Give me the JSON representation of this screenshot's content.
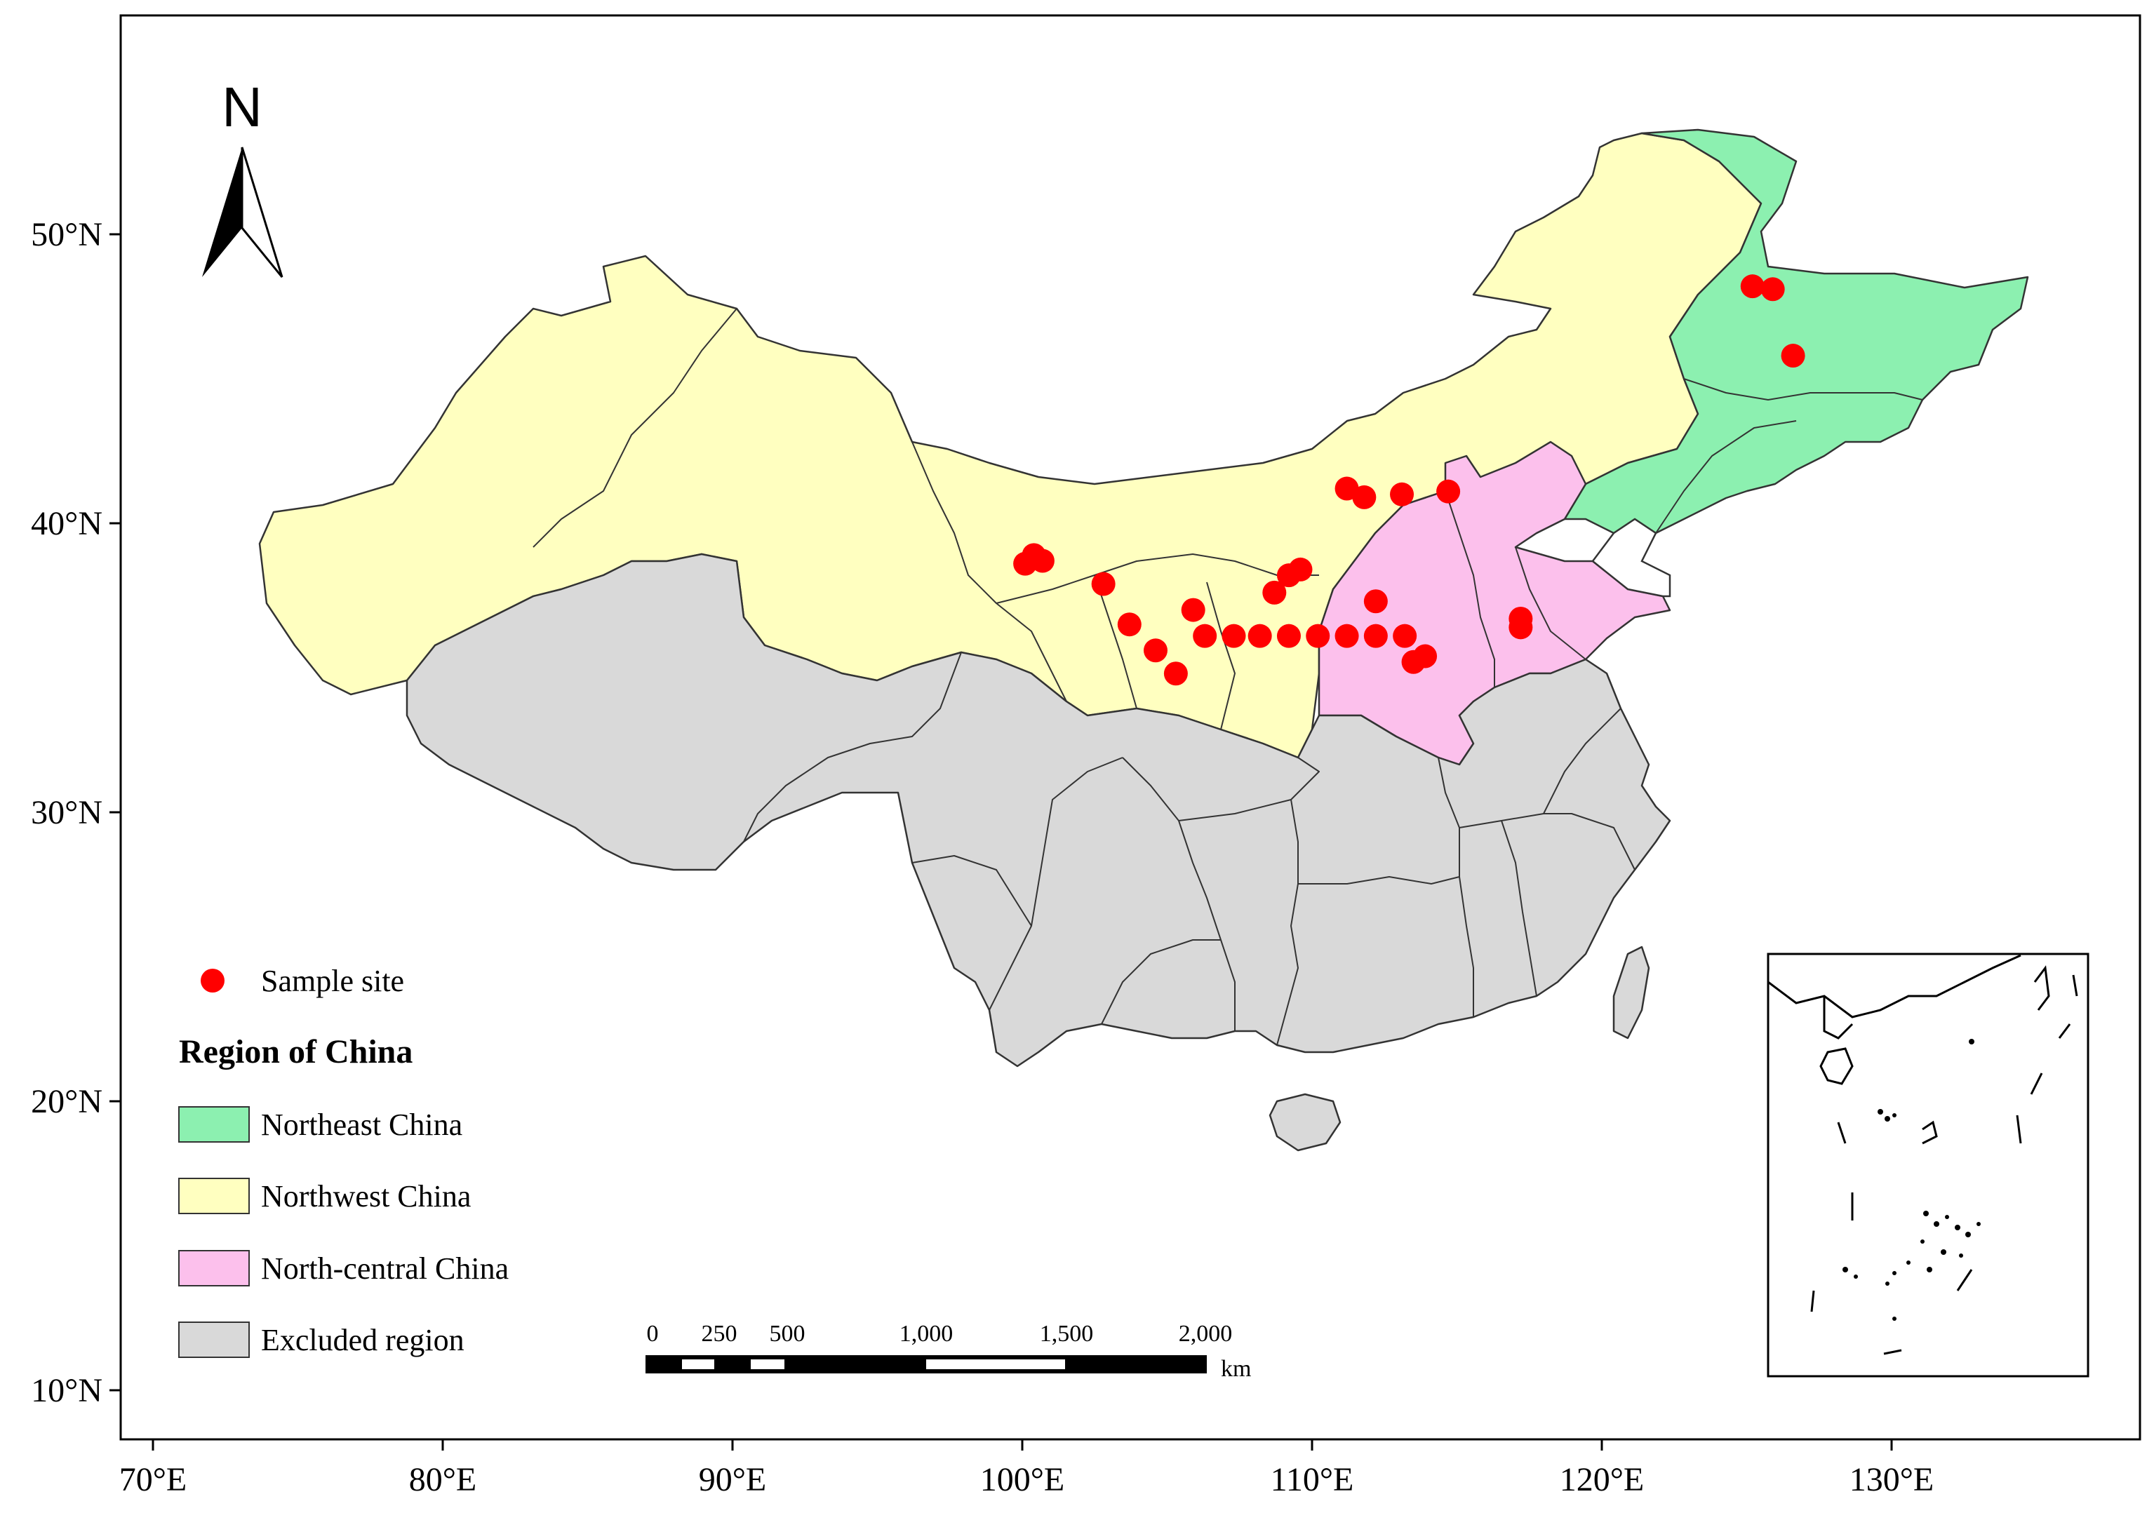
{
  "axes": {
    "x_ticks": [
      "70°E",
      "80°E",
      "90°E",
      "100°E",
      "110°E",
      "120°E",
      "130°E"
    ],
    "y_ticks": [
      "50°N",
      "40°N",
      "30°N",
      "20°N",
      "10°N"
    ]
  },
  "north_arrow": {
    "label": "N",
    "icon": "north-arrow-icon"
  },
  "legend": {
    "sample_label": "Sample site",
    "title": "Region of China",
    "items": [
      {
        "label": "Northeast China",
        "color": "#8cf0b0"
      },
      {
        "label": "Northwest China",
        "color": "#ffffc0"
      },
      {
        "label": "North-central China",
        "color": "#fcc0ec"
      },
      {
        "label": "Excluded region",
        "color": "#d9d9d9"
      }
    ],
    "sample_color": "#ff0000"
  },
  "scale_bar": {
    "labels": [
      "0",
      "250",
      "500",
      "1,000",
      "1,500",
      "2,000"
    ],
    "unit": "km"
  },
  "sample_sites": [
    [
      125.2,
      48.2
    ],
    [
      125.9,
      48.1
    ],
    [
      126.6,
      45.8
    ],
    [
      100.1,
      38.6
    ],
    [
      100.4,
      38.9
    ],
    [
      100.7,
      38.7
    ],
    [
      102.8,
      37.9
    ],
    [
      103.7,
      36.5
    ],
    [
      104.6,
      35.6
    ],
    [
      105.3,
      34.8
    ],
    [
      105.9,
      37.0
    ],
    [
      106.3,
      36.1
    ],
    [
      107.3,
      36.1
    ],
    [
      108.2,
      36.1
    ],
    [
      108.7,
      37.6
    ],
    [
      109.2,
      38.2
    ],
    [
      109.6,
      38.4
    ],
    [
      109.2,
      36.1
    ],
    [
      110.2,
      36.1
    ],
    [
      111.2,
      36.1
    ],
    [
      112.2,
      36.1
    ],
    [
      113.2,
      36.1
    ],
    [
      112.2,
      37.3
    ],
    [
      113.5,
      35.2
    ],
    [
      113.9,
      35.4
    ],
    [
      111.2,
      41.2
    ],
    [
      111.8,
      40.9
    ],
    [
      113.1,
      41.0
    ],
    [
      114.7,
      41.1
    ],
    [
      117.2,
      36.7
    ],
    [
      117.2,
      36.4
    ]
  ]
}
